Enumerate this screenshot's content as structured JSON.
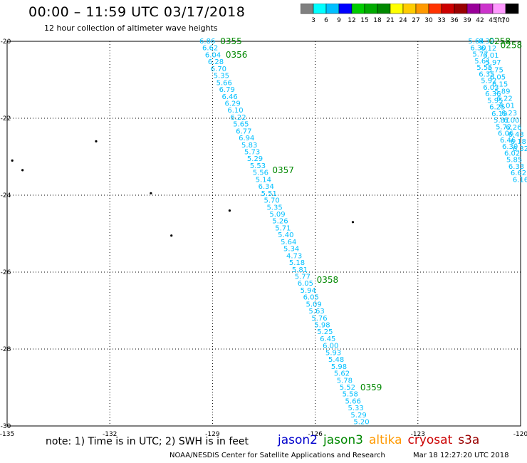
{
  "header": {
    "title": "00:00 – 11:59 UTC 03/17/2018",
    "subtitle": "12 hour collection of altimeter wave heights"
  },
  "colorbar": {
    "colors": [
      "#808080",
      "#00ffff",
      "#00bfff",
      "#0000ff",
      "#00cc00",
      "#00aa00",
      "#008800",
      "#ffff00",
      "#ffcc00",
      "#ff9900",
      "#ff3300",
      "#cc0000",
      "#990000",
      "#990099",
      "#cc33cc",
      "#ff99ff",
      "#000000"
    ],
    "labels": [
      "3",
      "6",
      "9",
      "12",
      "15",
      "18",
      "21",
      "24",
      "27",
      "30",
      "33",
      "36",
      "39",
      "42",
      "45",
      "70",
      "(ft)"
    ]
  },
  "footer": {
    "note": "note:  1) Time is in UTC;  2) SWH is in feet",
    "satellites": [
      {
        "name": "jason2",
        "color": "#0000cc"
      },
      {
        "name": "jason3",
        "color": "#008800"
      },
      {
        "name": "altika",
        "color": "#ff9900"
      },
      {
        "name": "cryosat",
        "color": "#cc0000"
      },
      {
        "name": "s3a",
        "color": "#990000"
      }
    ],
    "credit": "NOAA/NESDIS Center for Satellite Applications and Research",
    "timestamp": "Mar 18 12:27:20 UTC 2018"
  },
  "chart_data": {
    "type": "scatter",
    "xlabel": "",
    "ylabel": "",
    "xlim": [
      -135,
      -120
    ],
    "ylim": [
      -30,
      -20
    ],
    "x_ticks": [
      -135,
      -132,
      -129,
      -126,
      -123,
      -120
    ],
    "x_tick_labels": [
      "-135",
      "-132",
      "-129",
      "-126",
      "-123",
      "-120"
    ],
    "y_ticks": [
      -20,
      -22,
      -24,
      -26,
      -28,
      -30
    ],
    "y_tick_labels": [
      "-20",
      "-22",
      "-24",
      "-26",
      "-28",
      "-30"
    ],
    "grid": true,
    "track_color": "#00bfff",
    "time_color": "#008800",
    "tracks": [
      {
        "lon_start": -129.15,
        "lat_start": -20.0,
        "lon_end": -124.65,
        "lat_end": -29.9,
        "values": [
          "6.86",
          "6.62",
          "6.04",
          "6.28",
          "6.70",
          "5.35",
          "5.66",
          "6.79",
          "6.46",
          "6.29",
          "6.10",
          "6.22",
          "5.65",
          "6.77",
          "6.94",
          "5.83",
          "5.73",
          "5.29",
          "5.53",
          "5.56",
          "5.14",
          "6.34",
          "5.51",
          "5.70",
          "5.35",
          "5.09",
          "5.26",
          "5.71",
          "5.40",
          "5.64",
          "5.34",
          "4.73",
          "5.18",
          "5.81",
          "5.77",
          "6.05",
          "5.94",
          "6.05",
          "5.09",
          "5.63",
          "5.76",
          "5.98",
          "5.25",
          "6.45",
          "6.00",
          "5.93",
          "5.48",
          "5.98",
          "5.62",
          "5.78",
          "5.52",
          "5.58",
          "5.66",
          "5.33",
          "5.29",
          "5.20"
        ],
        "times": [
          {
            "label": "0355",
            "lat": -20.0
          },
          {
            "label": "0356",
            "lat": -20.35
          },
          {
            "label": "0357",
            "lat": -23.35
          },
          {
            "label": "0358",
            "lat": -26.2
          },
          {
            "label": "0359",
            "lat": -29.0
          }
        ]
      },
      {
        "lon_start": -121.3,
        "lat_start": -20.0,
        "lon_end": -120.0,
        "lat_end": -23.6,
        "values": [
          "5.64",
          "6.30",
          "5.77",
          "5.61",
          "5.55",
          "6.35",
          "5.92",
          "6.03",
          "6.36",
          "5.95",
          "6.25",
          "6.19",
          "5.81",
          "5.72",
          "6.06",
          "6.46",
          "6.30",
          "6.02",
          "5.85",
          "6.33",
          "6.62",
          "6.16"
        ],
        "times": [
          {
            "label": "0258",
            "lat": -20.0
          }
        ]
      },
      {
        "lon_start": -121.0,
        "lat_start": -20.0,
        "lon_end": -120.0,
        "lat_end": -22.8,
        "values": [
          "6.32",
          "6.12",
          "6.01",
          "5.97",
          "5.75",
          "6.05",
          "6.15",
          "5.89",
          "6.22",
          "6.01",
          "6.23",
          "6.00",
          "6.26",
          "6.43",
          "6.18",
          "6.32"
        ],
        "times": [
          {
            "label": "0258",
            "lat": -20.1
          }
        ]
      }
    ],
    "islands": [
      {
        "lon": -132.4,
        "lat": -22.6
      },
      {
        "lon": -134.85,
        "lat": -23.1
      },
      {
        "lon": -134.55,
        "lat": -23.35
      },
      {
        "lon": -130.8,
        "lat": -23.95
      },
      {
        "lon": -128.5,
        "lat": -24.4
      },
      {
        "lon": -130.2,
        "lat": -25.05
      },
      {
        "lon": -124.9,
        "lat": -24.7
      }
    ]
  }
}
